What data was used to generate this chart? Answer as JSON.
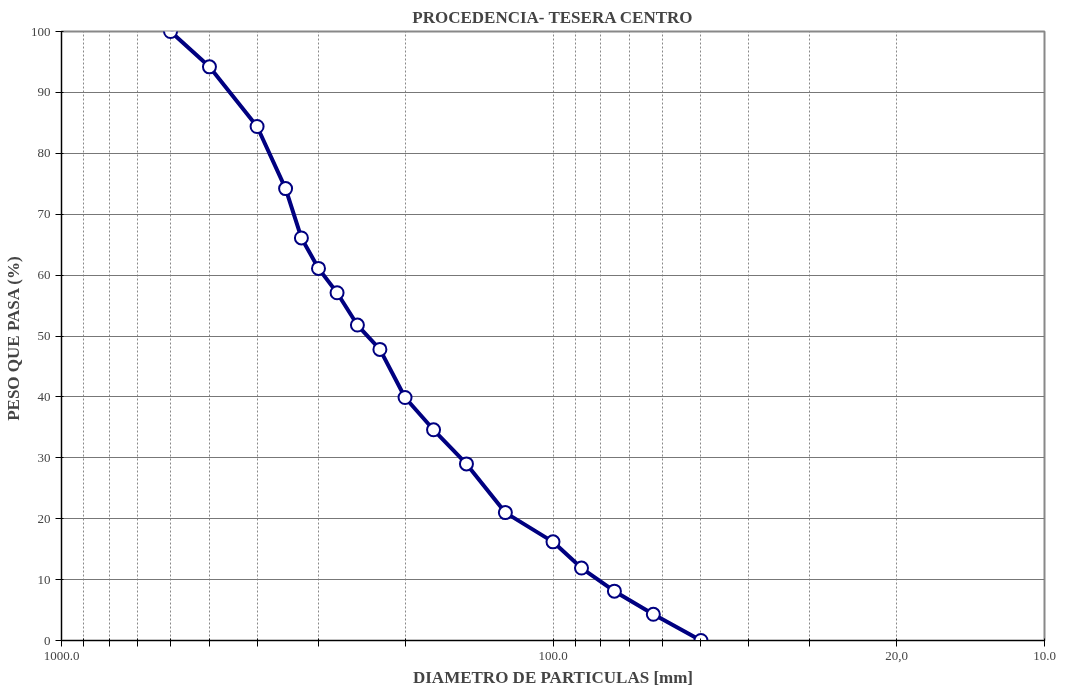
{
  "chart_data": {
    "type": "line",
    "title": "PROCEDENCIA- TESERA CENTRO",
    "xlabel": "DIAMETRO DE PARTICULAS [mm]",
    "ylabel": "PESO QUE PASA  (%)",
    "x": [
      600,
      500,
      400,
      350,
      325,
      300,
      275,
      250,
      225,
      200,
      175,
      150,
      125,
      100,
      87.5,
      75,
      62.5,
      50
    ],
    "series": [
      {
        "color": "#000080",
        "values": [
          100,
          94.2,
          84.4,
          74.2,
          66.1,
          61.1,
          57.1,
          51.8,
          47.8,
          39.9,
          34.6,
          29.0,
          21.0,
          16.2,
          11.9,
          8.1,
          4.3,
          0
        ]
      }
    ],
    "log": "x",
    "xlim": [
      1000,
      10
    ],
    "ylim": [
      0,
      100
    ],
    "xticks": [
      {
        "value": 1000,
        "label": "1000.0"
      },
      {
        "value": 900,
        "label": null
      },
      {
        "value": 800,
        "label": null
      },
      {
        "value": 700,
        "label": null
      },
      {
        "value": 600,
        "label": null
      },
      {
        "value": 500,
        "label": null
      },
      {
        "value": 400,
        "label": null
      },
      {
        "value": 300,
        "label": null
      },
      {
        "value": 200,
        "label": null
      },
      {
        "value": 100,
        "label": "100.0"
      },
      {
        "value": 90,
        "label": null
      },
      {
        "value": 80,
        "label": null
      },
      {
        "value": 70,
        "label": null
      },
      {
        "value": 60,
        "label": null
      },
      {
        "value": 50,
        "label": null
      },
      {
        "value": 40,
        "label": null
      },
      {
        "value": 30,
        "label": null
      },
      {
        "value": 20,
        "label": "20,0"
      },
      {
        "value": 10,
        "label": "10.0"
      }
    ],
    "yticks": [
      0,
      10,
      20,
      30,
      40,
      50,
      60,
      70,
      80,
      90,
      100
    ],
    "grid": true,
    "marker": "circle",
    "line_style": "solid"
  }
}
